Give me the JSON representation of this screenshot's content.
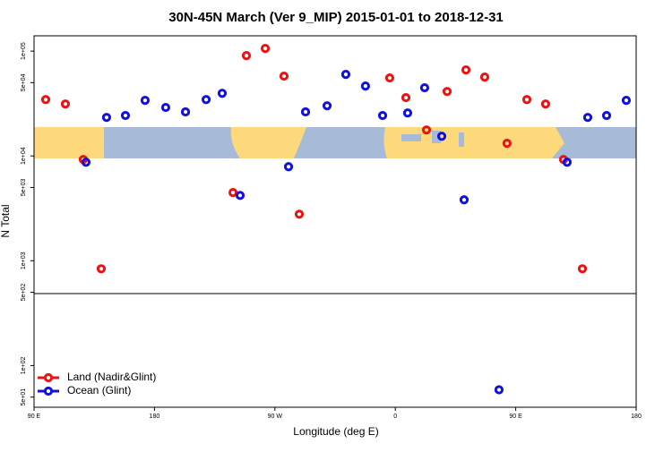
{
  "chart_data": {
    "type": "scatter",
    "title": "30N-45N March (Ver 9_MIP)   2015-01-01 to 2018-12-31",
    "xlabel": "Longitude (deg E)",
    "ylabel": "N Total",
    "yscale": "log",
    "xlim": [
      90,
      540
    ],
    "ylim": [
      40,
      140000
    ],
    "xticks": [
      {
        "value": 90,
        "label": "90 E"
      },
      180,
      {
        "value": 270,
        "label": "90 W"
      },
      {
        "value": 360,
        "label": "0"
      },
      {
        "value": 450,
        "label": "90 E"
      },
      {
        "value": 540,
        "label": "180"
      }
    ],
    "yticks": [
      {
        "value": 50,
        "label": "5e+01"
      },
      {
        "value": 100,
        "label": "1e+02"
      },
      {
        "value": 500,
        "label": "5e+02"
      },
      {
        "value": 1000,
        "label": "1e+03"
      },
      {
        "value": 5000,
        "label": "5e+03"
      },
      {
        "value": 10000,
        "label": "1e+04"
      },
      {
        "value": 50000,
        "label": "5e+04"
      },
      {
        "value": 100000,
        "label": "1e+05"
      }
    ],
    "legend": "lower left",
    "series": [
      {
        "name": "Land (Nadir&Glint)",
        "color": "#ee1111",
        "x": [
          98.7,
          113.4,
          126.8,
          140.2,
          238.7,
          248.7,
          262.8,
          276.8,
          288.2,
          355.8,
          367.9,
          383.3,
          398.7,
          412.8,
          426.8,
          443.5,
          458.3,
          472.3,
          485.7,
          499.8
        ],
        "values": [
          34500,
          31300,
          9250,
          838,
          4470,
          90600,
          106000,
          57700,
          2780,
          55500,
          36000,
          17700,
          41200,
          66200,
          56500,
          13200,
          34500,
          31300,
          9250,
          838
        ]
      },
      {
        "name": "Ocean (Glint)",
        "color": "#1111dd",
        "x": [
          128.8,
          144.2,
          158.3,
          173.0,
          188.4,
          203.2,
          218.6,
          230.6,
          244.0,
          280.2,
          292.9,
          309.0,
          323.0,
          337.7,
          350.5,
          369.2,
          381.9,
          394.7,
          411.4,
          437.5,
          488.4,
          503.8,
          517.9,
          532.6
        ],
        "values": [
          8710,
          23300,
          24300,
          33900,
          29000,
          26300,
          34500,
          39600,
          4200,
          7890,
          26300,
          30100,
          60000,
          46400,
          24300,
          25700,
          44700,
          15400,
          3810,
          58.7,
          8710,
          23300,
          24300,
          33900
        ]
      }
    ]
  }
}
